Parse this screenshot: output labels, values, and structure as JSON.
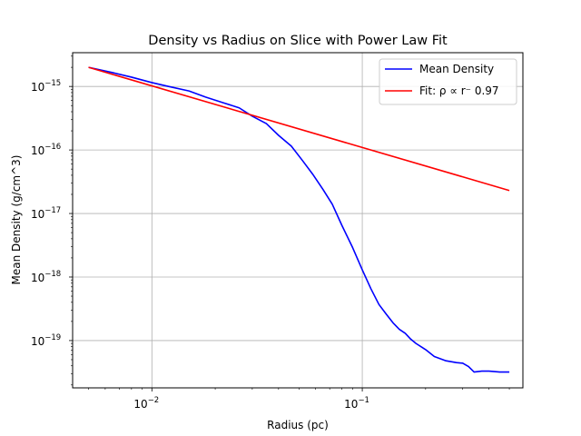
{
  "chart_data": {
    "type": "line",
    "title": "Density vs Radius on Slice with Power Law Fit",
    "xlabel": "Radius (pc)",
    "ylabel": "Mean Density (g/cm^3)",
    "xscale": "log",
    "yscale": "log",
    "xlim": [
      0.0042,
      0.58
    ],
    "ylim": [
      1.8e-20,
      3.4e-15
    ],
    "grid": true,
    "legend_position": "top-right",
    "x_ticks": [
      {
        "value": 0.01,
        "base": "10",
        "exp": "−2"
      },
      {
        "value": 0.1,
        "base": "10",
        "exp": "−1"
      }
    ],
    "y_ticks": [
      {
        "value": 1e-19,
        "base": "10",
        "exp": "−19"
      },
      {
        "value": 1e-18,
        "base": "10",
        "exp": "−18"
      },
      {
        "value": 1e-17,
        "base": "10",
        "exp": "−17"
      },
      {
        "value": 1e-16,
        "base": "10",
        "exp": "−16"
      },
      {
        "value": 1e-15,
        "base": "10",
        "exp": "−15"
      }
    ],
    "series": [
      {
        "name": "Mean Density",
        "color": "#0000ff",
        "x": [
          0.005,
          0.0065,
          0.008,
          0.01,
          0.012,
          0.015,
          0.018,
          0.022,
          0.026,
          0.03,
          0.035,
          0.04,
          0.046,
          0.052,
          0.058,
          0.065,
          0.072,
          0.08,
          0.09,
          0.1,
          0.11,
          0.12,
          0.13,
          0.14,
          0.15,
          0.16,
          0.17,
          0.18,
          0.2,
          0.22,
          0.25,
          0.28,
          0.3,
          0.32,
          0.34,
          0.37,
          0.4,
          0.45,
          0.5
        ],
        "y": [
          2e-15,
          1.65e-15,
          1.4e-15,
          1.15e-15,
          1e-15,
          8.5e-16,
          6.8e-16,
          5.5e-16,
          4.6e-16,
          3.4e-16,
          2.6e-16,
          1.7e-16,
          1.15e-16,
          6.8e-17,
          4.2e-17,
          2.4e-17,
          1.4e-17,
          6.5e-18,
          2.9e-18,
          1.3e-18,
          6.5e-19,
          3.7e-19,
          2.6e-19,
          1.9e-19,
          1.5e-19,
          1.3e-19,
          1.05e-19,
          9e-20,
          7.2e-20,
          5.6e-20,
          4.8e-20,
          4.5e-20,
          4.4e-20,
          3.9e-20,
          3.2e-20,
          3.3e-20,
          3.3e-20,
          3.2e-20,
          3.2e-20
        ]
      },
      {
        "name": "Fit: ρ ∝ r⁻ 0.97",
        "color": "#ff0000",
        "x": [
          0.005,
          0.5
        ],
        "y": [
          2e-15,
          2.3e-17
        ]
      }
    ]
  }
}
